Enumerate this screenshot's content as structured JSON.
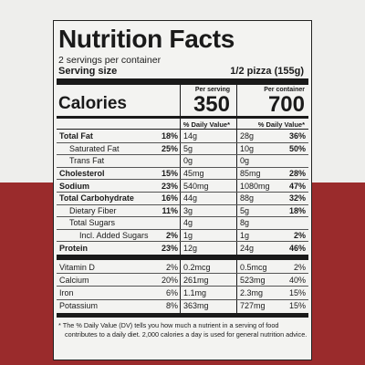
{
  "title": "Nutrition Facts",
  "servings": "2 servings per container",
  "serving_size": {
    "label": "Serving size",
    "value": "1/2 pizza (155g)"
  },
  "calories": {
    "label": "Calories",
    "per_serving_label": "Per serving",
    "per_serving": "350",
    "per_container_label": "Per container",
    "per_container": "700"
  },
  "dv_header": {
    "serving": "% Daily Value*",
    "container": "% Daily Value*"
  },
  "nutrients": [
    {
      "name": "Total Fat",
      "bold": true,
      "s_amt": "14g",
      "s_dv": "18%",
      "c_amt": "28g",
      "c_dv": "36%"
    },
    {
      "name": "Saturated Fat",
      "indent": 1,
      "s_amt": "5g",
      "s_dv": "25%",
      "c_amt": "10g",
      "c_dv": "50%"
    },
    {
      "name": "Trans Fat",
      "indent": 1,
      "s_amt": "0g",
      "c_amt": "0g"
    },
    {
      "name": "Cholesterol",
      "bold": true,
      "s_amt": "45mg",
      "s_dv": "15%",
      "c_amt": "85mg",
      "c_dv": "28%"
    },
    {
      "name": "Sodium",
      "bold": true,
      "s_amt": "540mg",
      "s_dv": "23%",
      "c_amt": "1080mg",
      "c_dv": "47%"
    },
    {
      "name": "Total Carbohydrate",
      "bold": true,
      "s_amt": "44g",
      "s_dv": "16%",
      "c_amt": "88g",
      "c_dv": "32%"
    },
    {
      "name": "Dietary Fiber",
      "indent": 1,
      "s_amt": "3g",
      "s_dv": "11%",
      "c_amt": "5g",
      "c_dv": "18%"
    },
    {
      "name": "Total Sugars",
      "indent": 1,
      "s_amt": "4g",
      "c_amt": "8g"
    },
    {
      "name": "Incl. Added Sugars",
      "indent": 2,
      "s_amt": "1g",
      "s_dv": "2%",
      "c_amt": "1g",
      "c_dv": "2%"
    },
    {
      "name": "Protein",
      "bold": true,
      "s_amt": "12g",
      "s_dv": "23%",
      "c_amt": "24g",
      "c_dv": "46%"
    }
  ],
  "vitamins": [
    {
      "name": "Vitamin D",
      "s_amt": "0.2mcg",
      "s_dv": "2%",
      "c_amt": "0.5mcg",
      "c_dv": "2%"
    },
    {
      "name": "Calcium",
      "s_amt": "261mg",
      "s_dv": "20%",
      "c_amt": "523mg",
      "c_dv": "40%"
    },
    {
      "name": "Iron",
      "s_amt": "1.1mg",
      "s_dv": "6%",
      "c_amt": "2.3mg",
      "c_dv": "15%"
    },
    {
      "name": "Potassium",
      "s_amt": "363mg",
      "s_dv": "8%",
      "c_amt": "727mg",
      "c_dv": "15%"
    }
  ],
  "footnote": [
    "* The % Daily Value (DV) tells you how much a nutrient in a serving of food",
    "contributes to a daily diet. 2,000 calories a day is used for general nutrition advice."
  ]
}
